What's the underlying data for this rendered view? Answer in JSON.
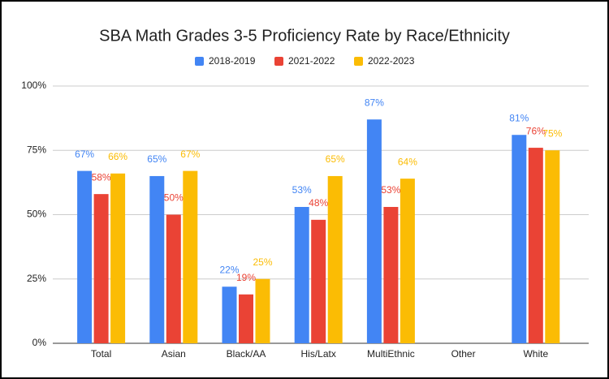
{
  "chart_data": {
    "type": "bar",
    "title": "SBA Math Grades 3-5 Proficiency Rate by Race/Ethnicity",
    "categories": [
      "Total",
      "Asian",
      "Black/AA",
      "His/Latx",
      "MultiEthnic",
      "Other",
      "White"
    ],
    "series": [
      {
        "name": "2018-2019",
        "color": "#4285f4",
        "values": [
          67,
          65,
          22,
          53,
          87,
          null,
          81
        ],
        "value_labels": [
          "67%",
          "65%",
          "22%",
          "53%",
          "87%",
          null,
          "81%"
        ]
      },
      {
        "name": "2021-2022",
        "color": "#ea4335",
        "values": [
          58,
          50,
          19,
          48,
          53,
          null,
          76
        ],
        "value_labels": [
          "58%",
          "50%",
          "19%",
          "48%",
          "53%",
          null,
          "76%"
        ]
      },
      {
        "name": "2022-2023",
        "color": "#fbbc04",
        "values": [
          66,
          67,
          25,
          65,
          64,
          null,
          75
        ],
        "value_labels": [
          "66%",
          "67%",
          "25%",
          "65%",
          "64%",
          null,
          "75%"
        ]
      }
    ],
    "ylim": [
      0,
      100
    ],
    "yticks": [
      {
        "value": 0,
        "label": "0%"
      },
      {
        "value": 25,
        "label": "25%"
      },
      {
        "value": 50,
        "label": "50%"
      },
      {
        "value": 75,
        "label": "75%"
      },
      {
        "value": 100,
        "label": "100%"
      }
    ],
    "grid": true,
    "legend": "top"
  }
}
